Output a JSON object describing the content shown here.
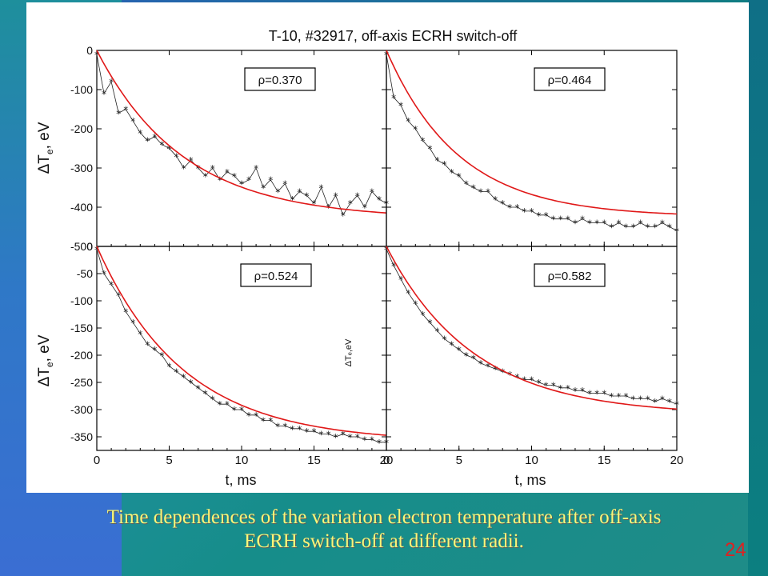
{
  "figure_title": "T-10, #32917, off-axis ECRH switch-off",
  "ylabel_main": "ΔT",
  "ylabel_sub": "e",
  "ylabel_unit": ", eV",
  "ylabel_small": "ΔTₑ,eV",
  "xlabel": "t, ms",
  "caption_line1": "Time dependences of the variation electron temperature after off-axis",
  "caption_line2": "ECRH switch-off at different radii.",
  "slide_number": "24",
  "colors": {
    "data": "#222222",
    "fit": "#e01818",
    "caption": "#f7f77a",
    "slide_number": "#e02020"
  },
  "chart_data": [
    {
      "type": "line",
      "panel": "top-left",
      "label": "ρ=0.370",
      "xlim": [
        0,
        20
      ],
      "ylim": [
        -500,
        0
      ],
      "x_ticks": [
        "0",
        "5",
        "10",
        "15",
        "20"
      ],
      "y_ticks": [
        "0",
        "-100",
        "-200",
        "-300",
        "-400",
        "-500"
      ],
      "series": [
        {
          "values_x": [
            0,
            0.5,
            1,
            1.5,
            2,
            2.5,
            3,
            3.5,
            4,
            4.5,
            5,
            5.5,
            6,
            6.5,
            7,
            7.5,
            8,
            8.5,
            9,
            9.5,
            10,
            10.5,
            11,
            11.5,
            12,
            12.5,
            13,
            13.5,
            14,
            14.5,
            15,
            15.5,
            16,
            16.5,
            17,
            17.5,
            18,
            18.5,
            19,
            19.5,
            20
          ],
          "values_y": [
            -10,
            -110,
            -80,
            -160,
            -150,
            -180,
            -210,
            -230,
            -220,
            -240,
            -250,
            -270,
            -300,
            -280,
            -300,
            -320,
            -300,
            -330,
            -310,
            -320,
            -340,
            -330,
            -300,
            -350,
            -330,
            -360,
            -340,
            -380,
            -360,
            -370,
            -390,
            -350,
            -400,
            -370,
            -420,
            -390,
            -370,
            -400,
            -360,
            -380,
            -390
          ]
        },
        {
          "fit_tau": 6.0,
          "fit_amp": -430
        }
      ]
    },
    {
      "type": "line",
      "panel": "top-right",
      "label": "ρ=0.464",
      "xlim": [
        0,
        20
      ],
      "ylim": [
        -500,
        0
      ],
      "x_ticks": [
        "0",
        "5",
        "10",
        "15",
        "20"
      ],
      "y_ticks": [
        "0",
        "-100",
        "-200",
        "-300",
        "-400",
        "-500"
      ],
      "series": [
        {
          "values_x": [
            0,
            0.5,
            1,
            1.5,
            2,
            2.5,
            3,
            3.5,
            4,
            4.5,
            5,
            5.5,
            6,
            6.5,
            7,
            7.5,
            8,
            8.5,
            9,
            9.5,
            10,
            10.5,
            11,
            11.5,
            12,
            12.5,
            13,
            13.5,
            14,
            14.5,
            15,
            15.5,
            16,
            16.5,
            17,
            17.5,
            18,
            18.5,
            19,
            19.5,
            20
          ],
          "values_y": [
            -10,
            -120,
            -140,
            -180,
            -200,
            -230,
            -250,
            -280,
            -290,
            -310,
            -320,
            -340,
            -350,
            -360,
            -360,
            -380,
            -390,
            -400,
            -400,
            -410,
            -410,
            -420,
            -420,
            -430,
            -430,
            -430,
            -440,
            -430,
            -440,
            -440,
            -440,
            -450,
            -440,
            -450,
            -450,
            -440,
            -450,
            -450,
            -440,
            -450,
            -460
          ]
        },
        {
          "fit_tau": 5.0,
          "fit_amp": -425
        }
      ]
    },
    {
      "type": "line",
      "panel": "bottom-left",
      "label": "ρ=0.524",
      "xlim": [
        0,
        20
      ],
      "ylim": [
        -375,
        0
      ],
      "x_ticks": [
        "0",
        "5",
        "10",
        "15",
        "20"
      ],
      "y_ticks": [
        "0",
        "-50",
        "-100",
        "-150",
        "-200",
        "-250",
        "-300",
        "-350"
      ],
      "series": [
        {
          "values_x": [
            0,
            0.5,
            1,
            1.5,
            2,
            2.5,
            3,
            3.5,
            4,
            4.5,
            5,
            5.5,
            6,
            6.5,
            7,
            7.5,
            8,
            8.5,
            9,
            9.5,
            10,
            10.5,
            11,
            11.5,
            12,
            12.5,
            13,
            13.5,
            14,
            14.5,
            15,
            15.5,
            16,
            16.5,
            17,
            17.5,
            18,
            18.5,
            19,
            19.5,
            20
          ],
          "values_y": [
            -5,
            -50,
            -70,
            -90,
            -120,
            -140,
            -160,
            -180,
            -190,
            -200,
            -220,
            -230,
            -240,
            -250,
            -260,
            -270,
            -280,
            -290,
            -290,
            -300,
            -300,
            -310,
            -310,
            -320,
            -320,
            -330,
            -330,
            -335,
            -335,
            -340,
            -340,
            -345,
            -345,
            -350,
            -345,
            -350,
            -350,
            -355,
            -355,
            -360,
            -360
          ]
        },
        {
          "fit_tau": 6.0,
          "fit_amp": -360
        }
      ]
    },
    {
      "type": "line",
      "panel": "bottom-right",
      "label": "ρ=0.582",
      "xlim": [
        0,
        20
      ],
      "ylim": [
        -375,
        0
      ],
      "x_ticks": [
        "0",
        "5",
        "10",
        "15",
        "20"
      ],
      "y_ticks": [],
      "series": [
        {
          "values_x": [
            0,
            0.5,
            1,
            1.5,
            2,
            2.5,
            3,
            3.5,
            4,
            4.5,
            5,
            5.5,
            6,
            6.5,
            7,
            7.5,
            8,
            8.5,
            9,
            9.5,
            10,
            10.5,
            11,
            11.5,
            12,
            12.5,
            13,
            13.5,
            14,
            14.5,
            15,
            15.5,
            16,
            16.5,
            17,
            17.5,
            18,
            18.5,
            19,
            19.5,
            20
          ],
          "values_y": [
            -5,
            -35,
            -60,
            -85,
            -105,
            -125,
            -140,
            -155,
            -170,
            -180,
            -190,
            -200,
            -205,
            -215,
            -220,
            -225,
            -230,
            -235,
            -240,
            -245,
            -245,
            -250,
            -255,
            -255,
            -260,
            -260,
            -265,
            -265,
            -270,
            -270,
            -270,
            -275,
            -275,
            -275,
            -280,
            -280,
            -280,
            -285,
            -280,
            -285,
            -290
          ]
        },
        {
          "fit_tau": 6.0,
          "fit_amp": -310
        }
      ]
    }
  ]
}
